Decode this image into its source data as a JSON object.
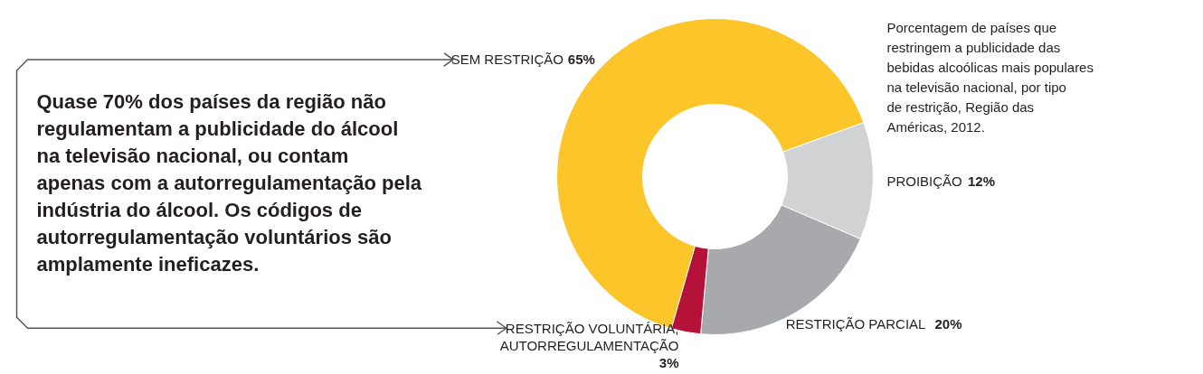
{
  "chart_data": {
    "type": "donut",
    "title": "Porcentagem de países que restringem a publicidade das bebidas alcoólicas mais populares na televisão nacional, por tipo de restrição, Região das Américas, 2012.",
    "categories": [
      "SEM RESTRIÇÃO",
      "PROIBIÇÃO",
      "RESTRIÇÃO PARCIAL",
      "RESTRIÇÃO VOLUNTÁRIA,\nAUTORREGULAMENTAÇÃO"
    ],
    "values": [
      65,
      12,
      20,
      3
    ],
    "value_labels": [
      "65%",
      "12%",
      "20%",
      "3%"
    ],
    "colors": [
      "#fcc62b",
      "#d1d2d4",
      "#a7a9ac",
      "#b5123a"
    ],
    "annotations": [
      "Quase 70% dos países da região não regulamentam a publicidade do álcool na televisão nacional, ou contam apenas com a autorregulamentação pela indústria do álcool. Os códigos de autorregulamentação voluntários são amplamente ineficazes."
    ]
  }
}
